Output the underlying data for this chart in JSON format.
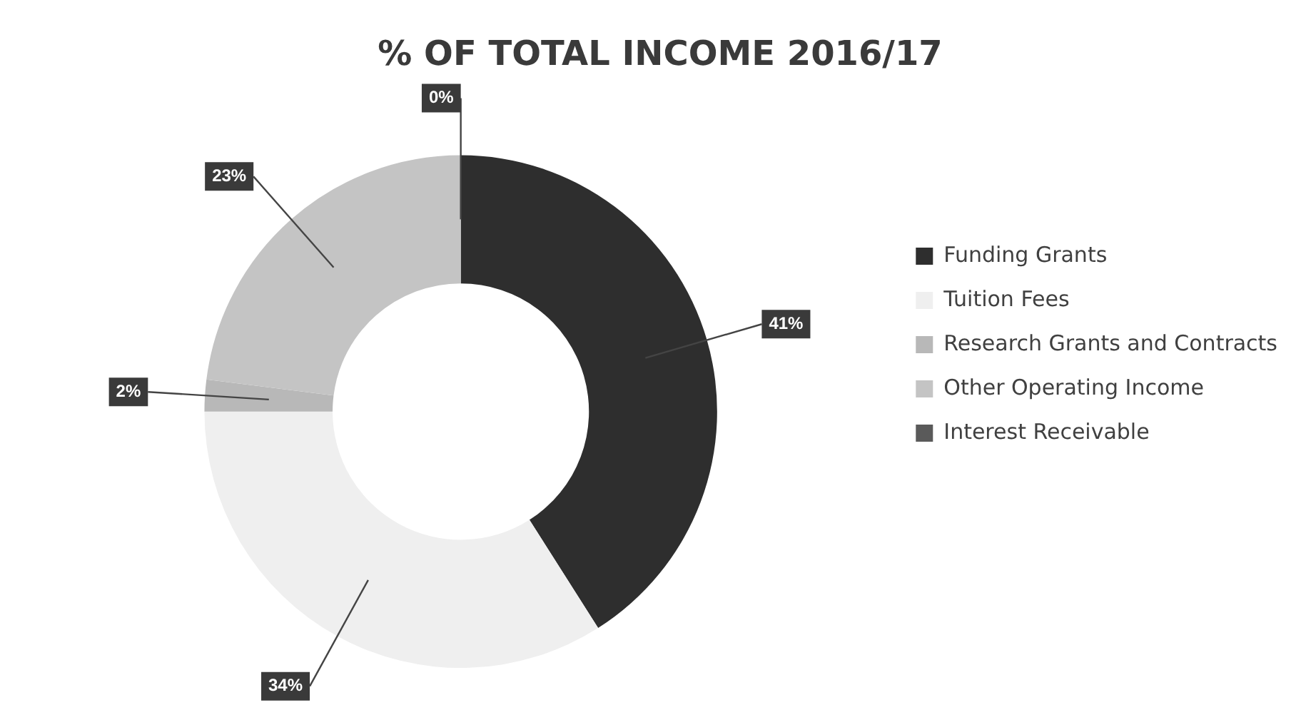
{
  "chart_data": {
    "type": "donut",
    "title": "% OF TOTAL INCOME 2016/17",
    "categories": [
      "Funding Grants",
      "Tuition Fees",
      "Research Grants and Contracts",
      "Other Operating Income",
      "Interest Receivable"
    ],
    "values": [
      41,
      34,
      2,
      23,
      0
    ],
    "colors": [
      "#2e2e2e",
      "#efefef",
      "#b8b8b8",
      "#c4c4c4",
      "#5a5a5a"
    ],
    "value_labels": [
      "41%",
      "34%",
      "2%",
      "23%",
      "0%"
    ],
    "legend": "right"
  }
}
